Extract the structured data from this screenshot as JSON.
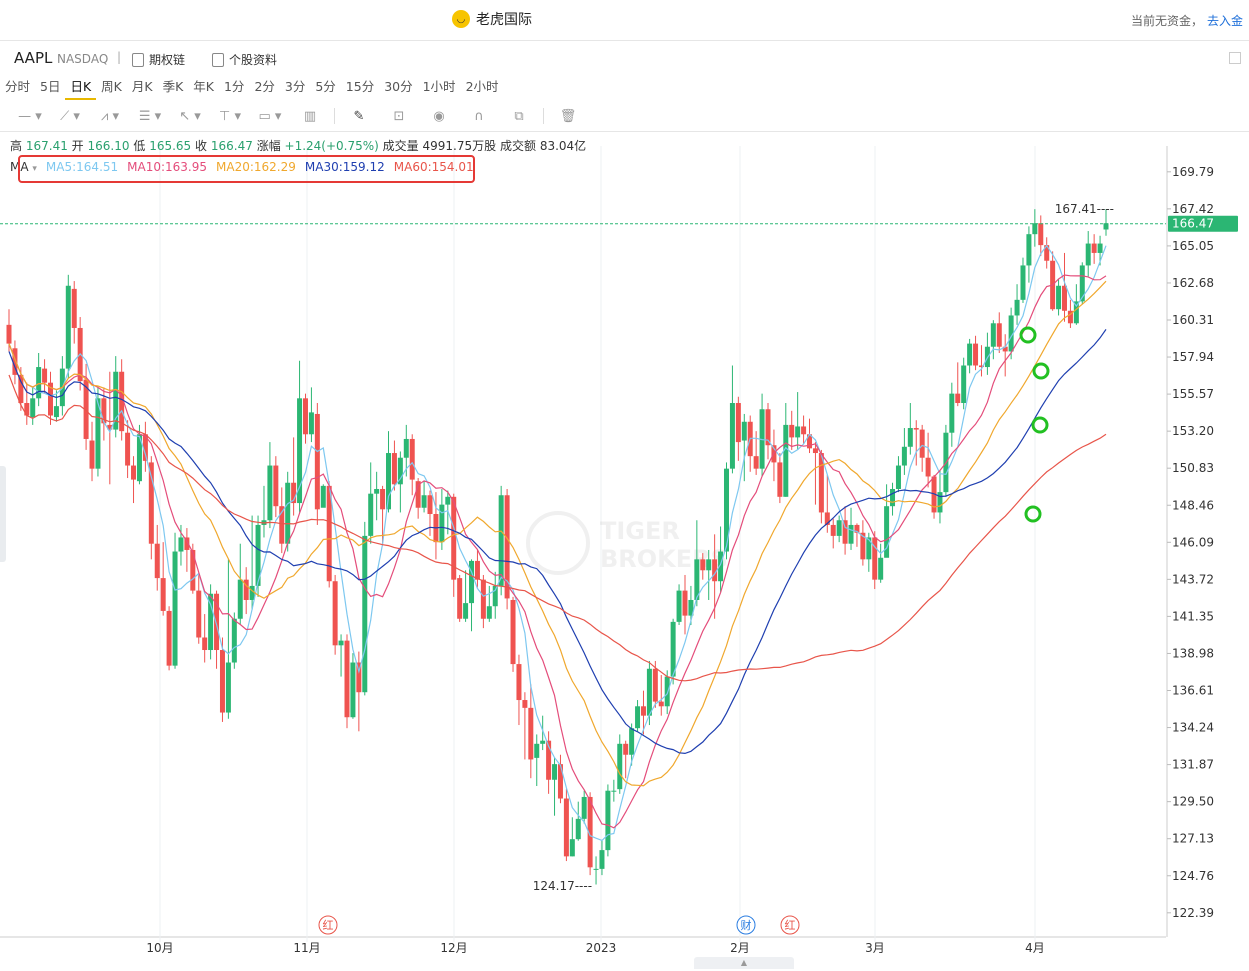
{
  "header": {
    "app_name": "老虎国际",
    "funds_text": "当前无资金，",
    "deposit_link": "去入金"
  },
  "stock": {
    "symbol": "AAPL",
    "exchange": "NASDAQ",
    "separator": "|",
    "options_chain": "期权链",
    "profile": "个股资料"
  },
  "periods": [
    {
      "label": "分时",
      "active": false
    },
    {
      "label": "5日",
      "active": false
    },
    {
      "label": "日K",
      "active": true
    },
    {
      "label": "周K",
      "active": false
    },
    {
      "label": "月K",
      "active": false
    },
    {
      "label": "季K",
      "active": false
    },
    {
      "label": "年K",
      "active": false
    },
    {
      "label": "1分",
      "active": false
    },
    {
      "label": "2分",
      "active": false
    },
    {
      "label": "3分",
      "active": false
    },
    {
      "label": "5分",
      "active": false
    },
    {
      "label": "15分",
      "active": false
    },
    {
      "label": "30分",
      "active": false
    },
    {
      "label": "1小时",
      "active": false
    },
    {
      "label": "2小时",
      "active": false
    }
  ],
  "quote": {
    "high_label": "高",
    "high": "167.41",
    "open_label": "开",
    "open": "166.10",
    "low_label": "低",
    "low": "165.65",
    "close_label": "收",
    "close": "166.47",
    "change_label": "涨幅",
    "change": "+1.24(+0.75%)",
    "volume_label": "成交量",
    "volume": "4991.75万股",
    "turnover_label": "成交额",
    "turnover": "83.04亿"
  },
  "ma": {
    "label": "MA",
    "items": [
      {
        "text": "MA5:164.51",
        "color": "#7ec8f0"
      },
      {
        "text": "MA10:163.95",
        "color": "#e44d7b"
      },
      {
        "text": "MA20:162.29",
        "color": "#f0a82e"
      },
      {
        "text": "MA30:159.12",
        "color": "#1f3fb0"
      },
      {
        "text": "MA60:154.01",
        "color": "#e8554a"
      }
    ]
  },
  "colors": {
    "up": "#2bb673",
    "down": "#ef5350",
    "ma5": "#7ec8f0",
    "ma10": "#e44d7b",
    "ma20": "#f0a82e",
    "ma30": "#1f3fb0",
    "ma60": "#e8554a",
    "last_price_badge": "#2bb673",
    "annotation_circle": "#22c022",
    "annotation_box": "#e53935"
  },
  "chart_data": {
    "type": "candlestick",
    "y_ticks": [
      "169.79",
      "167.42",
      "165.05",
      "162.68",
      "160.31",
      "157.94",
      "155.57",
      "153.20",
      "150.83",
      "148.46",
      "146.09",
      "143.72",
      "141.35",
      "138.98",
      "136.61",
      "134.24",
      "131.87",
      "129.50",
      "127.13",
      "124.76",
      "122.39"
    ],
    "x_ticks": [
      "10月",
      "11月",
      "12月",
      "2023",
      "2月",
      "3月",
      "4月"
    ],
    "last_price": "166.47",
    "high_marker": "167.41",
    "low_marker": "124.17",
    "event_markers": [
      "红",
      "财",
      "红"
    ],
    "watermark": [
      "TIGER",
      "BROKERS"
    ],
    "candles": [
      [
        160.0,
        158.8,
        161.0,
        158.3
      ],
      [
        158.5,
        156.8,
        159.0,
        156.2
      ],
      [
        156.8,
        155.0,
        157.3,
        154.5
      ],
      [
        155.0,
        154.2,
        156.3,
        153.6
      ],
      [
        154.1,
        155.3,
        156.0,
        153.6
      ],
      [
        155.3,
        157.3,
        158.2,
        154.8
      ],
      [
        157.2,
        156.3,
        157.8,
        155.6
      ],
      [
        156.3,
        154.2,
        157.0,
        153.6
      ],
      [
        154.1,
        154.8,
        155.8,
        153.8
      ],
      [
        154.8,
        157.2,
        158.0,
        154.2
      ],
      [
        157.2,
        162.5,
        163.2,
        156.6
      ],
      [
        162.3,
        159.8,
        162.8,
        158.8
      ],
      [
        159.8,
        156.4,
        160.5,
        155.8
      ],
      [
        156.5,
        152.7,
        157.5,
        152.0
      ],
      [
        152.6,
        150.8,
        153.8,
        150.0
      ],
      [
        150.8,
        155.3,
        156.0,
        150.3
      ],
      [
        155.3,
        153.7,
        156.0,
        152.6
      ],
      [
        153.6,
        153.3,
        157.0,
        149.8
      ],
      [
        153.3,
        157.0,
        158.0,
        152.8
      ],
      [
        157.0,
        153.2,
        157.8,
        152.6
      ],
      [
        153.1,
        151.0,
        153.9,
        150.2
      ],
      [
        151.0,
        150.1,
        151.6,
        148.6
      ],
      [
        150.0,
        153.0,
        153.6,
        149.8
      ],
      [
        153.0,
        151.3,
        153.8,
        150.6
      ],
      [
        151.2,
        146.0,
        151.6,
        145.0
      ],
      [
        146.0,
        143.8,
        147.2,
        143.0
      ],
      [
        143.8,
        141.7,
        146.1,
        141.4
      ],
      [
        141.7,
        138.2,
        142.0,
        137.9
      ],
      [
        138.2,
        145.5,
        146.7,
        138.0
      ],
      [
        145.5,
        146.4,
        147.2,
        144.6
      ],
      [
        146.4,
        145.6,
        147.0,
        144.2
      ],
      [
        145.6,
        143.0,
        146.0,
        142.8
      ],
      [
        143.0,
        140.0,
        144.0,
        139.6
      ],
      [
        140.0,
        139.2,
        141.5,
        138.4
      ],
      [
        139.2,
        142.8,
        143.4,
        138.6
      ],
      [
        142.8,
        139.2,
        143.0,
        138.0
      ],
      [
        139.2,
        135.2,
        140.0,
        134.6
      ],
      [
        135.2,
        138.4,
        145.0,
        134.8
      ],
      [
        138.4,
        141.2,
        141.6,
        138.0
      ],
      [
        141.2,
        143.7,
        146.0,
        140.8
      ],
      [
        143.7,
        142.4,
        144.5,
        141.5
      ],
      [
        142.4,
        143.3,
        147.8,
        141.8
      ],
      [
        143.3,
        147.2,
        147.8,
        142.6
      ],
      [
        147.2,
        147.5,
        149.7,
        146.4
      ],
      [
        147.5,
        151.0,
        152.5,
        147.0
      ],
      [
        151.0,
        148.4,
        151.6,
        147.7
      ],
      [
        148.4,
        146.0,
        149.6,
        145.4
      ],
      [
        146.0,
        149.9,
        150.6,
        145.5
      ],
      [
        149.9,
        148.6,
        152.8,
        147.8
      ],
      [
        148.6,
        155.3,
        157.7,
        148.0
      ],
      [
        155.3,
        153.0,
        155.6,
        152.4
      ],
      [
        153.0,
        154.4,
        156.0,
        152.5
      ],
      [
        154.3,
        148.2,
        155.0,
        147.2
      ],
      [
        148.3,
        149.7,
        149.8,
        148.4
      ],
      [
        149.7,
        143.6,
        150.0,
        143.2
      ],
      [
        143.6,
        139.5,
        144.0,
        138.9
      ],
      [
        139.5,
        139.8,
        140.2,
        137.5
      ],
      [
        139.8,
        134.9,
        140.2,
        134.2
      ],
      [
        134.9,
        138.4,
        139.0,
        134.8
      ],
      [
        138.4,
        136.5,
        139.1,
        134.0
      ],
      [
        136.5,
        146.5,
        147.4,
        136.3
      ],
      [
        146.5,
        149.2,
        151.2,
        146.0
      ],
      [
        149.2,
        149.5,
        150.6,
        147.5
      ],
      [
        149.5,
        148.2,
        149.7,
        146.0
      ],
      [
        148.2,
        151.8,
        153.2,
        148.0
      ],
      [
        151.8,
        149.8,
        152.6,
        149.4
      ],
      [
        149.8,
        151.5,
        151.9,
        148.0
      ],
      [
        151.5,
        152.7,
        153.6,
        150.3
      ],
      [
        152.7,
        150.1,
        153.0,
        149.1
      ],
      [
        150.0,
        148.3,
        150.2,
        147.6
      ],
      [
        148.3,
        149.1,
        150.0,
        148.0
      ],
      [
        149.1,
        147.9,
        149.4,
        146.5
      ],
      [
        147.9,
        146.1,
        149.3,
        145.0
      ],
      [
        146.1,
        148.5,
        149.5,
        145.6
      ],
      [
        148.5,
        149.0,
        149.4,
        146.6
      ],
      [
        149.0,
        143.7,
        149.2,
        142.6
      ],
      [
        143.8,
        141.2,
        144.0,
        141.0
      ],
      [
        141.2,
        142.2,
        144.3,
        141.0
      ],
      [
        142.2,
        144.9,
        145.0,
        140.4
      ],
      [
        144.9,
        143.7,
        145.6,
        143.2
      ],
      [
        143.7,
        141.2,
        144.0,
        140.6
      ],
      [
        141.2,
        142.0,
        143.3,
        141.0
      ],
      [
        142.0,
        143.3,
        144.2,
        141.2
      ],
      [
        143.3,
        149.1,
        149.7,
        142.7
      ],
      [
        149.1,
        142.5,
        149.5,
        141.8
      ],
      [
        142.4,
        138.3,
        142.6,
        137.8
      ],
      [
        138.3,
        136.0,
        138.9,
        134.4
      ],
      [
        136.0,
        135.5,
        136.5,
        132.2
      ],
      [
        135.5,
        132.2,
        137.0,
        131.0
      ],
      [
        132.3,
        133.2,
        133.8,
        130.5
      ],
      [
        133.2,
        133.4,
        135.0,
        132.8
      ],
      [
        133.4,
        130.9,
        134.0,
        130.0
      ],
      [
        130.9,
        131.9,
        132.3,
        128.6
      ],
      [
        131.9,
        129.7,
        132.5,
        129.4
      ],
      [
        129.7,
        126.0,
        130.3,
        125.7
      ],
      [
        126.0,
        127.1,
        128.5,
        126.0
      ],
      [
        127.1,
        128.4,
        129.5,
        127.0
      ],
      [
        128.4,
        129.8,
        130.2,
        128.1
      ],
      [
        129.8,
        125.3,
        130.1,
        124.8
      ],
      [
        125.2,
        125.2,
        126.0,
        124.2
      ],
      [
        125.2,
        126.4,
        127.0,
        124.8
      ],
      [
        126.4,
        130.2,
        130.6,
        126.0
      ],
      [
        130.2,
        130.2,
        130.9,
        129.5
      ],
      [
        130.3,
        133.2,
        133.8,
        130.0
      ],
      [
        133.2,
        132.5,
        133.4,
        131.0
      ],
      [
        132.5,
        134.2,
        134.5,
        131.8
      ],
      [
        134.2,
        135.6,
        136.0,
        134.0
      ],
      [
        135.6,
        135.0,
        136.6,
        133.8
      ],
      [
        135.0,
        138.0,
        138.5,
        134.4
      ],
      [
        138.0,
        135.9,
        138.5,
        135.5
      ],
      [
        135.9,
        135.6,
        137.6,
        135.0
      ],
      [
        135.6,
        137.5,
        137.9,
        135.1
      ],
      [
        137.5,
        141.0,
        141.2,
        137.0
      ],
      [
        141.0,
        143.0,
        143.4,
        140.8
      ],
      [
        143.0,
        141.4,
        144.0,
        140.2
      ],
      [
        141.4,
        142.4,
        143.3,
        140.8
      ],
      [
        142.4,
        145.0,
        147.5,
        142.0
      ],
      [
        145.0,
        144.3,
        145.4,
        143.7
      ],
      [
        144.3,
        145.0,
        145.6,
        142.4
      ],
      [
        145.0,
        143.6,
        146.6,
        141.2
      ],
      [
        143.6,
        145.5,
        147.1,
        142.9
      ],
      [
        145.5,
        150.8,
        151.2,
        145.0
      ],
      [
        150.8,
        155.0,
        157.4,
        150.5
      ],
      [
        155.0,
        152.5,
        155.4,
        151.3
      ],
      [
        152.6,
        153.8,
        154.3,
        150.0
      ],
      [
        153.8,
        151.6,
        154.2,
        150.6
      ],
      [
        151.6,
        150.8,
        153.2,
        150.4
      ],
      [
        150.8,
        154.6,
        155.6,
        150.3
      ],
      [
        154.6,
        152.3,
        155.0,
        151.4
      ],
      [
        152.3,
        151.2,
        153.3,
        150.0
      ],
      [
        151.2,
        149.0,
        151.8,
        148.6
      ],
      [
        149.0,
        153.6,
        155.0,
        149.0
      ],
      [
        153.6,
        152.8,
        154.5,
        152.0
      ],
      [
        152.8,
        153.5,
        155.7,
        152.0
      ],
      [
        153.5,
        153.0,
        154.2,
        152.4
      ],
      [
        153.0,
        152.1,
        154.0,
        151.8
      ],
      [
        152.1,
        151.8,
        152.5,
        148.5
      ],
      [
        151.8,
        148.0,
        152.0,
        147.3
      ],
      [
        148.0,
        147.2,
        150.4,
        146.7
      ],
      [
        147.2,
        146.5,
        147.6,
        145.7
      ],
      [
        146.5,
        147.5,
        147.8,
        146.1
      ],
      [
        147.5,
        146.0,
        148.4,
        145.3
      ],
      [
        146.0,
        147.2,
        148.3,
        145.6
      ],
      [
        147.2,
        146.7,
        147.3,
        145.8
      ],
      [
        146.7,
        145.0,
        147.5,
        144.6
      ],
      [
        145.0,
        146.4,
        146.7,
        144.2
      ],
      [
        146.4,
        143.7,
        146.8,
        143.1
      ],
      [
        143.7,
        145.1,
        146.0,
        143.5
      ],
      [
        145.1,
        148.4,
        149.8,
        145.2
      ],
      [
        148.4,
        149.5,
        149.9,
        147.8
      ],
      [
        149.5,
        151.0,
        151.6,
        149.3
      ],
      [
        151.0,
        152.2,
        153.4,
        150.4
      ],
      [
        152.2,
        153.4,
        155.0,
        151.7
      ],
      [
        153.4,
        153.3,
        153.9,
        151.0
      ],
      [
        153.3,
        151.5,
        153.6,
        150.6
      ],
      [
        151.5,
        150.3,
        153.1,
        149.6
      ],
      [
        150.3,
        148.0,
        150.4,
        147.6
      ],
      [
        148.0,
        149.3,
        150.7,
        147.3
      ],
      [
        149.3,
        153.1,
        153.6,
        149.0
      ],
      [
        153.1,
        155.6,
        156.3,
        152.2
      ],
      [
        155.6,
        155.0,
        157.6,
        154.8
      ],
      [
        155.0,
        157.4,
        157.9,
        154.6
      ],
      [
        157.4,
        158.8,
        159.1,
        156.9
      ],
      [
        158.8,
        157.4,
        159.3,
        157.1
      ],
      [
        157.4,
        157.3,
        158.7,
        156.7
      ],
      [
        157.3,
        158.6,
        159.5,
        156.8
      ],
      [
        158.6,
        160.1,
        160.3,
        157.8
      ],
      [
        160.1,
        158.6,
        160.8,
        158.2
      ],
      [
        158.6,
        158.3,
        159.4,
        156.7
      ],
      [
        158.3,
        160.6,
        161.1,
        157.8
      ],
      [
        160.6,
        161.6,
        162.6,
        160.0
      ],
      [
        161.6,
        163.8,
        164.3,
        161.4
      ],
      [
        163.8,
        165.8,
        166.3,
        162.7
      ],
      [
        165.8,
        166.5,
        167.4,
        165.0
      ],
      [
        166.5,
        165.1,
        167.0,
        164.4
      ],
      [
        165.1,
        164.1,
        165.6,
        163.6
      ],
      [
        164.1,
        161.0,
        164.7,
        160.9
      ],
      [
        161.0,
        162.5,
        162.9,
        160.6
      ],
      [
        162.5,
        160.9,
        164.6,
        160.2
      ],
      [
        160.9,
        160.1,
        161.6,
        159.8
      ],
      [
        160.1,
        161.5,
        162.6,
        160.0
      ],
      [
        161.5,
        163.8,
        164.0,
        161.3
      ],
      [
        163.8,
        165.2,
        166.0,
        163.1
      ],
      [
        165.2,
        164.6,
        165.8,
        163.9
      ],
      [
        164.6,
        165.2,
        165.7,
        163.8
      ],
      [
        166.1,
        166.5,
        167.4,
        165.7
      ]
    ]
  }
}
